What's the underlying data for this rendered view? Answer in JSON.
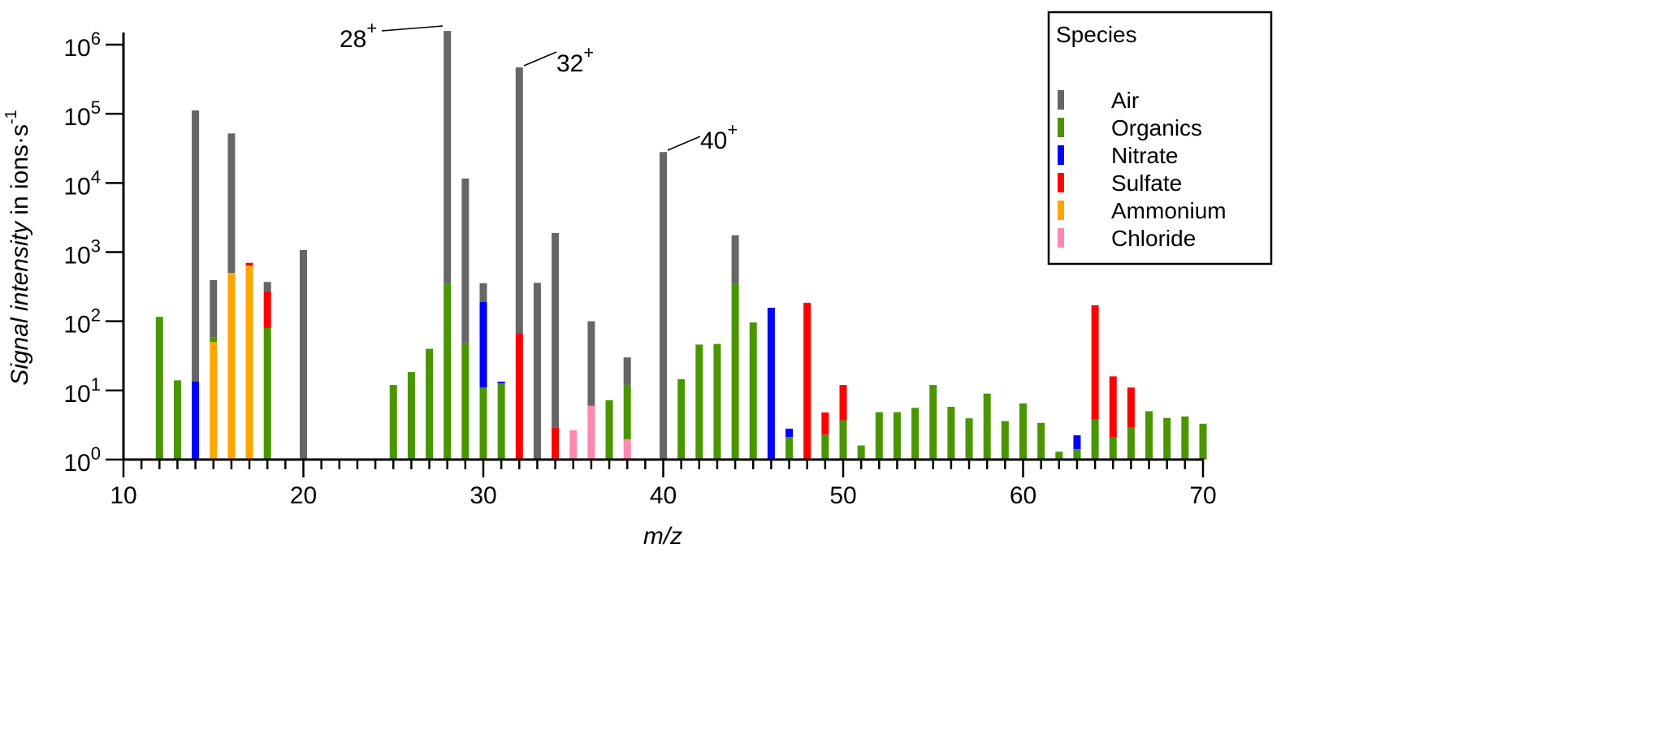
{
  "chart_data": {
    "type": "bar",
    "stacked": true,
    "y_scale": "log",
    "xlabel": "m/z",
    "ylabel_italic": "Signal intensity",
    "ylabel_rest": " in ions·s",
    "ylabel_exp": "-1",
    "xlim": [
      10,
      70
    ],
    "ylim": [
      1,
      1000000
    ],
    "x_ticks": [
      "10",
      "20",
      "30",
      "40",
      "50",
      "60",
      "70"
    ],
    "y_ticks": [
      {
        "base": "10",
        "exp": "0"
      },
      {
        "base": "10",
        "exp": "1"
      },
      {
        "base": "10",
        "exp": "2"
      },
      {
        "base": "10",
        "exp": "3"
      },
      {
        "base": "10",
        "exp": "4"
      },
      {
        "base": "10",
        "exp": "5"
      },
      {
        "base": "10",
        "exp": "6"
      }
    ],
    "grid": false,
    "legend": {
      "title": "Species",
      "placement": "top-right",
      "entries": [
        {
          "name": "Air",
          "color": "#666666"
        },
        {
          "name": "Organics",
          "color": "#4a9600"
        },
        {
          "name": "Nitrate",
          "color": "#0000ff"
        },
        {
          "name": "Sulfate",
          "color": "#ff0000"
        },
        {
          "name": "Ammonium",
          "color": "#ffa500"
        },
        {
          "name": "Chloride",
          "color": "#ff88b0"
        }
      ]
    },
    "stack_note": "each bar lists cumulative stack tops (ions·s-1) from bottom to top",
    "bars": [
      {
        "mz": 12,
        "stack": [
          [
            "Organics",
            116
          ]
        ]
      },
      {
        "mz": 13,
        "stack": [
          [
            "Organics",
            14
          ]
        ]
      },
      {
        "mz": 14,
        "stack": [
          [
            "Nitrate",
            13.5
          ],
          [
            "Air",
            112000
          ]
        ]
      },
      {
        "mz": 15,
        "stack": [
          [
            "Ammonium",
            50
          ],
          [
            "Organics",
            59
          ],
          [
            "Air",
            394
          ]
        ]
      },
      {
        "mz": 16,
        "stack": [
          [
            "Ammonium",
            500
          ],
          [
            "Air",
            52000
          ]
        ]
      },
      {
        "mz": 17,
        "stack": [
          [
            "Ammonium",
            640
          ],
          [
            "Sulfate",
            700
          ]
        ]
      },
      {
        "mz": 18,
        "stack": [
          [
            "Organics",
            80
          ],
          [
            "Sulfate",
            270
          ],
          [
            "Air",
            370
          ]
        ]
      },
      {
        "mz": 20,
        "stack": [
          [
            "Air",
            1070
          ]
        ]
      },
      {
        "mz": 25,
        "stack": [
          [
            "Organics",
            12
          ]
        ]
      },
      {
        "mz": 26,
        "stack": [
          [
            "Organics",
            18.5
          ]
        ]
      },
      {
        "mz": 27,
        "stack": [
          [
            "Organics",
            40
          ]
        ]
      },
      {
        "mz": 28,
        "stack": [
          [
            "Organics",
            355
          ],
          [
            "Air",
            1580000
          ]
        ]
      },
      {
        "mz": 29,
        "stack": [
          [
            "Organics",
            48
          ],
          [
            "Air",
            11600
          ]
        ]
      },
      {
        "mz": 30,
        "stack": [
          [
            "Organics",
            11
          ],
          [
            "Nitrate",
            190
          ],
          [
            "Air",
            355
          ]
        ]
      },
      {
        "mz": 31,
        "stack": [
          [
            "Organics",
            12.7
          ],
          [
            "Nitrate",
            13.4
          ]
        ]
      },
      {
        "mz": 32,
        "stack": [
          [
            "Sulfate",
            66
          ],
          [
            "Air",
            470000
          ]
        ]
      },
      {
        "mz": 33,
        "stack": [
          [
            "Air",
            360
          ]
        ]
      },
      {
        "mz": 34,
        "stack": [
          [
            "Sulfate",
            2.9
          ],
          [
            "Air",
            1890
          ]
        ]
      },
      {
        "mz": 35,
        "stack": [
          [
            "Chloride",
            2.65
          ]
        ]
      },
      {
        "mz": 36,
        "stack": [
          [
            "Chloride",
            6
          ],
          [
            "Air",
            100
          ]
        ]
      },
      {
        "mz": 37,
        "stack": [
          [
            "Organics",
            7.2
          ]
        ]
      },
      {
        "mz": 38,
        "stack": [
          [
            "Chloride",
            1.97
          ],
          [
            "Organics",
            12
          ],
          [
            "Air",
            30
          ]
        ]
      },
      {
        "mz": 40,
        "stack": [
          [
            "Air",
            28000
          ]
        ]
      },
      {
        "mz": 41,
        "stack": [
          [
            "Organics",
            14.5
          ]
        ]
      },
      {
        "mz": 42,
        "stack": [
          [
            "Organics",
            46
          ]
        ]
      },
      {
        "mz": 43,
        "stack": [
          [
            "Organics",
            47
          ]
        ]
      },
      {
        "mz": 44,
        "stack": [
          [
            "Organics",
            355
          ],
          [
            "Air",
            1750
          ]
        ]
      },
      {
        "mz": 45,
        "stack": [
          [
            "Organics",
            96
          ]
        ]
      },
      {
        "mz": 46,
        "stack": [
          [
            "Nitrate",
            157
          ]
        ]
      },
      {
        "mz": 47,
        "stack": [
          [
            "Organics",
            2.13
          ],
          [
            "Nitrate",
            2.8
          ]
        ]
      },
      {
        "mz": 48,
        "stack": [
          [
            "Sulfate",
            185
          ]
        ]
      },
      {
        "mz": 49,
        "stack": [
          [
            "Organics",
            2.3
          ],
          [
            "Sulfate",
            4.8
          ]
        ]
      },
      {
        "mz": 50,
        "stack": [
          [
            "Organics",
            3.7
          ],
          [
            "Sulfate",
            12
          ]
        ]
      },
      {
        "mz": 51,
        "stack": [
          [
            "Organics",
            1.6
          ]
        ]
      },
      {
        "mz": 52,
        "stack": [
          [
            "Organics",
            4.85
          ]
        ]
      },
      {
        "mz": 53,
        "stack": [
          [
            "Organics",
            4.85
          ]
        ]
      },
      {
        "mz": 54,
        "stack": [
          [
            "Organics",
            5.6
          ]
        ]
      },
      {
        "mz": 55,
        "stack": [
          [
            "Organics",
            12
          ]
        ]
      },
      {
        "mz": 56,
        "stack": [
          [
            "Organics",
            5.8
          ]
        ]
      },
      {
        "mz": 57,
        "stack": [
          [
            "Organics",
            3.95
          ]
        ]
      },
      {
        "mz": 58,
        "stack": [
          [
            "Organics",
            9
          ]
        ]
      },
      {
        "mz": 59,
        "stack": [
          [
            "Organics",
            3.6
          ]
        ]
      },
      {
        "mz": 60,
        "stack": [
          [
            "Organics",
            6.5
          ]
        ]
      },
      {
        "mz": 61,
        "stack": [
          [
            "Organics",
            3.4
          ]
        ]
      },
      {
        "mz": 62,
        "stack": [
          [
            "Organics",
            1.3
          ]
        ]
      },
      {
        "mz": 63,
        "stack": [
          [
            "Organics",
            1.42
          ],
          [
            "Nitrate",
            2.24
          ]
        ]
      },
      {
        "mz": 64,
        "stack": [
          [
            "Organics",
            3.8
          ],
          [
            "Sulfate",
            170
          ]
        ]
      },
      {
        "mz": 65,
        "stack": [
          [
            "Organics",
            2.1
          ],
          [
            "Sulfate",
            16
          ]
        ]
      },
      {
        "mz": 66,
        "stack": [
          [
            "Organics",
            2.9
          ],
          [
            "Sulfate",
            11
          ]
        ]
      },
      {
        "mz": 67,
        "stack": [
          [
            "Organics",
            5
          ]
        ]
      },
      {
        "mz": 68,
        "stack": [
          [
            "Organics",
            4
          ]
        ]
      },
      {
        "mz": 69,
        "stack": [
          [
            "Organics",
            4.2
          ]
        ]
      },
      {
        "mz": 70,
        "stack": [
          [
            "Organics",
            3.3
          ]
        ]
      }
    ],
    "annotations": [
      {
        "text": "28",
        "sup": "+",
        "mz": 28
      },
      {
        "text": "32",
        "sup": "+",
        "mz": 32
      },
      {
        "text": "40",
        "sup": "+",
        "mz": 40
      }
    ]
  }
}
